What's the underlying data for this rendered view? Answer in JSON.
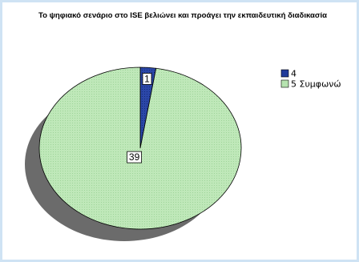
{
  "chart_data": {
    "type": "pie",
    "title": "Το ψηφιακό σενάριο στο ISE βελιώνει και προάγει την εκπαιδευτική διαδικασία",
    "series": [
      {
        "name": "4",
        "value": 1,
        "label": "1",
        "color": "#203a9a"
      },
      {
        "name": "5 Συμφωνώ",
        "value": 39,
        "label": "39",
        "color": "#b6e3b0"
      }
    ],
    "legend_position": "right",
    "shadow_color": "#6b6b6b",
    "outline_color": "#000000",
    "background": "#ffffff",
    "border_color": "#cfe3f4"
  }
}
